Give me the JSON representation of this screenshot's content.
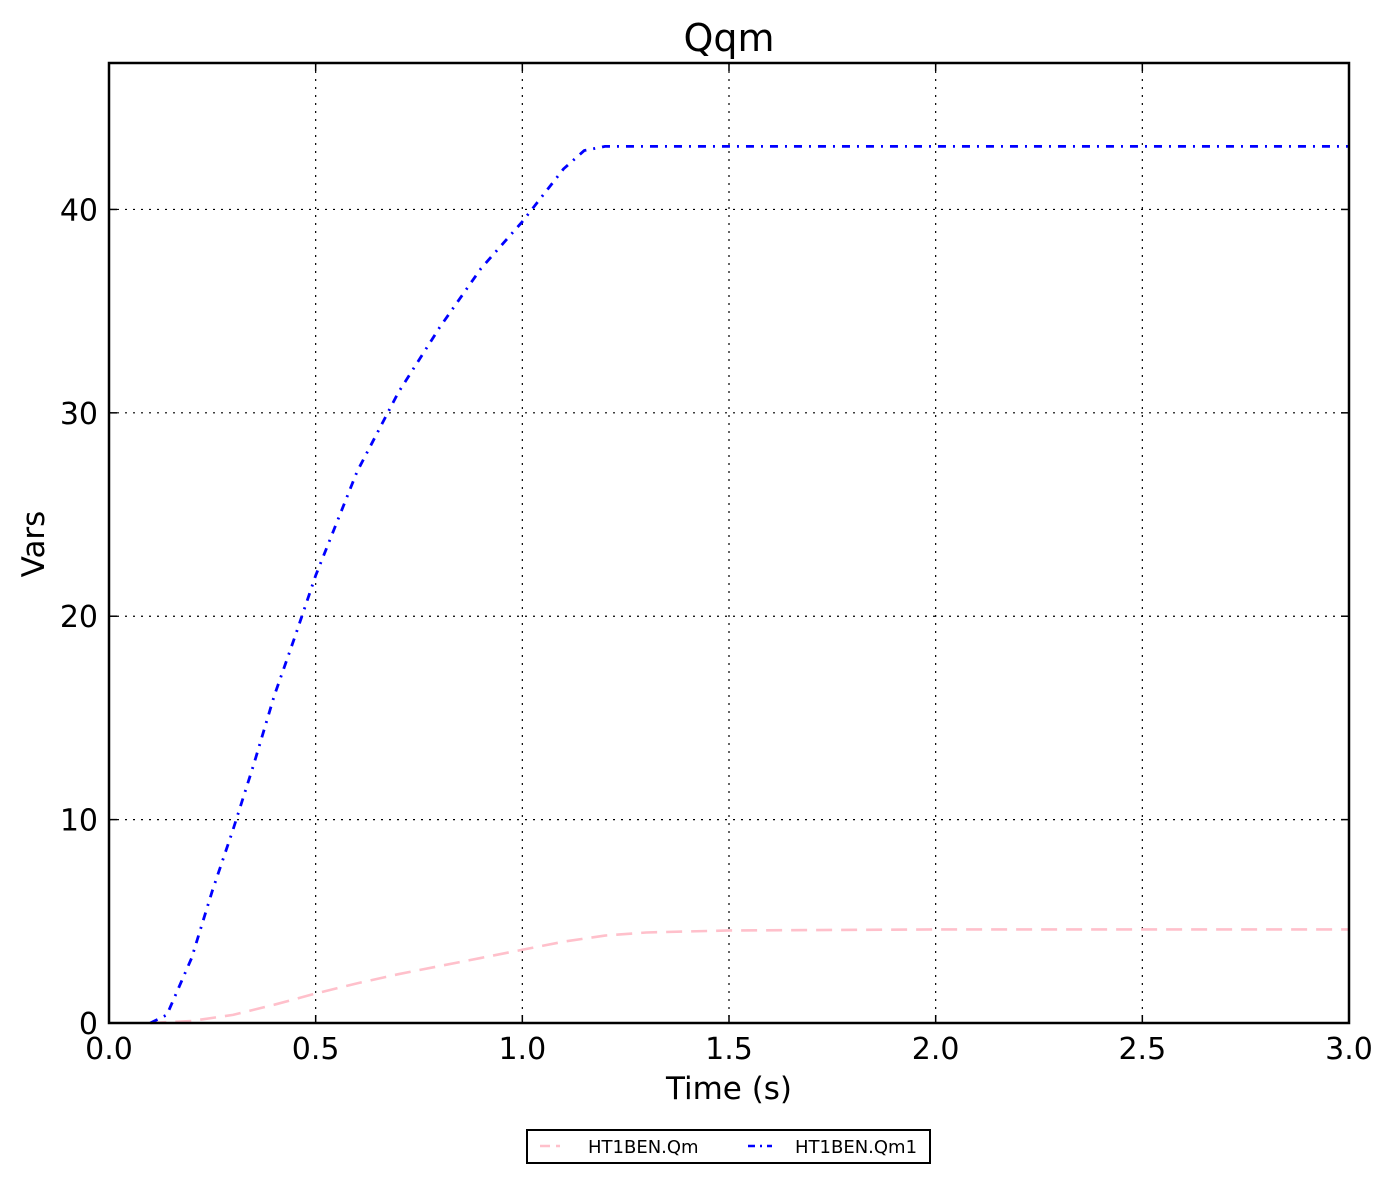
{
  "chart_data": {
    "type": "line",
    "title": "Qqm",
    "xlabel": "Time (s)",
    "ylabel": "Vars",
    "xlim": [
      0,
      3.0
    ],
    "ylim": [
      0,
      47.2
    ],
    "x_ticks": [
      0,
      0.5,
      1.0,
      1.5,
      2.0,
      2.5,
      3.0
    ],
    "x_tick_labels": [
      "0.0",
      "0.5",
      "1.0",
      "1.5",
      "2.0",
      "2.5",
      "3.0"
    ],
    "y_ticks": [
      0,
      10,
      20,
      30,
      40
    ],
    "y_tick_labels": [
      "0",
      "10",
      "20",
      "30",
      "40"
    ],
    "grid": true,
    "legend_position": "bottom-center",
    "series": [
      {
        "name": "HT1BEN.Qm",
        "color": "#ffc0cb",
        "line_style": "dashed",
        "points": [
          [
            0.1,
            0.0
          ],
          [
            0.2,
            0.1
          ],
          [
            0.3,
            0.4
          ],
          [
            0.4,
            0.9
          ],
          [
            0.5,
            1.45
          ],
          [
            0.6,
            1.95
          ],
          [
            0.7,
            2.4
          ],
          [
            0.8,
            2.8
          ],
          [
            0.9,
            3.2
          ],
          [
            1.0,
            3.6
          ],
          [
            1.1,
            4.0
          ],
          [
            1.2,
            4.3
          ],
          [
            1.3,
            4.45
          ],
          [
            1.4,
            4.5
          ],
          [
            1.5,
            4.55
          ],
          [
            2.0,
            4.6
          ],
          [
            2.5,
            4.6
          ],
          [
            3.0,
            4.6
          ]
        ]
      },
      {
        "name": "HT1BEN.Qm1",
        "color": "#0000ff",
        "line_style": "dashdot",
        "points": [
          [
            0.1,
            0.0
          ],
          [
            0.14,
            0.4
          ],
          [
            0.2,
            3.2
          ],
          [
            0.25,
            6.5
          ],
          [
            0.3,
            9.5
          ],
          [
            0.35,
            12.7
          ],
          [
            0.4,
            16.1
          ],
          [
            0.45,
            19.0
          ],
          [
            0.5,
            22.0
          ],
          [
            0.6,
            27.1
          ],
          [
            0.7,
            31.0
          ],
          [
            0.8,
            34.2
          ],
          [
            0.9,
            37.1
          ],
          [
            1.0,
            39.4
          ],
          [
            1.1,
            42.0
          ],
          [
            1.15,
            42.9
          ],
          [
            1.2,
            43.1
          ],
          [
            1.3,
            43.1
          ],
          [
            2.0,
            43.1
          ],
          [
            3.0,
            43.1
          ]
        ]
      }
    ]
  }
}
